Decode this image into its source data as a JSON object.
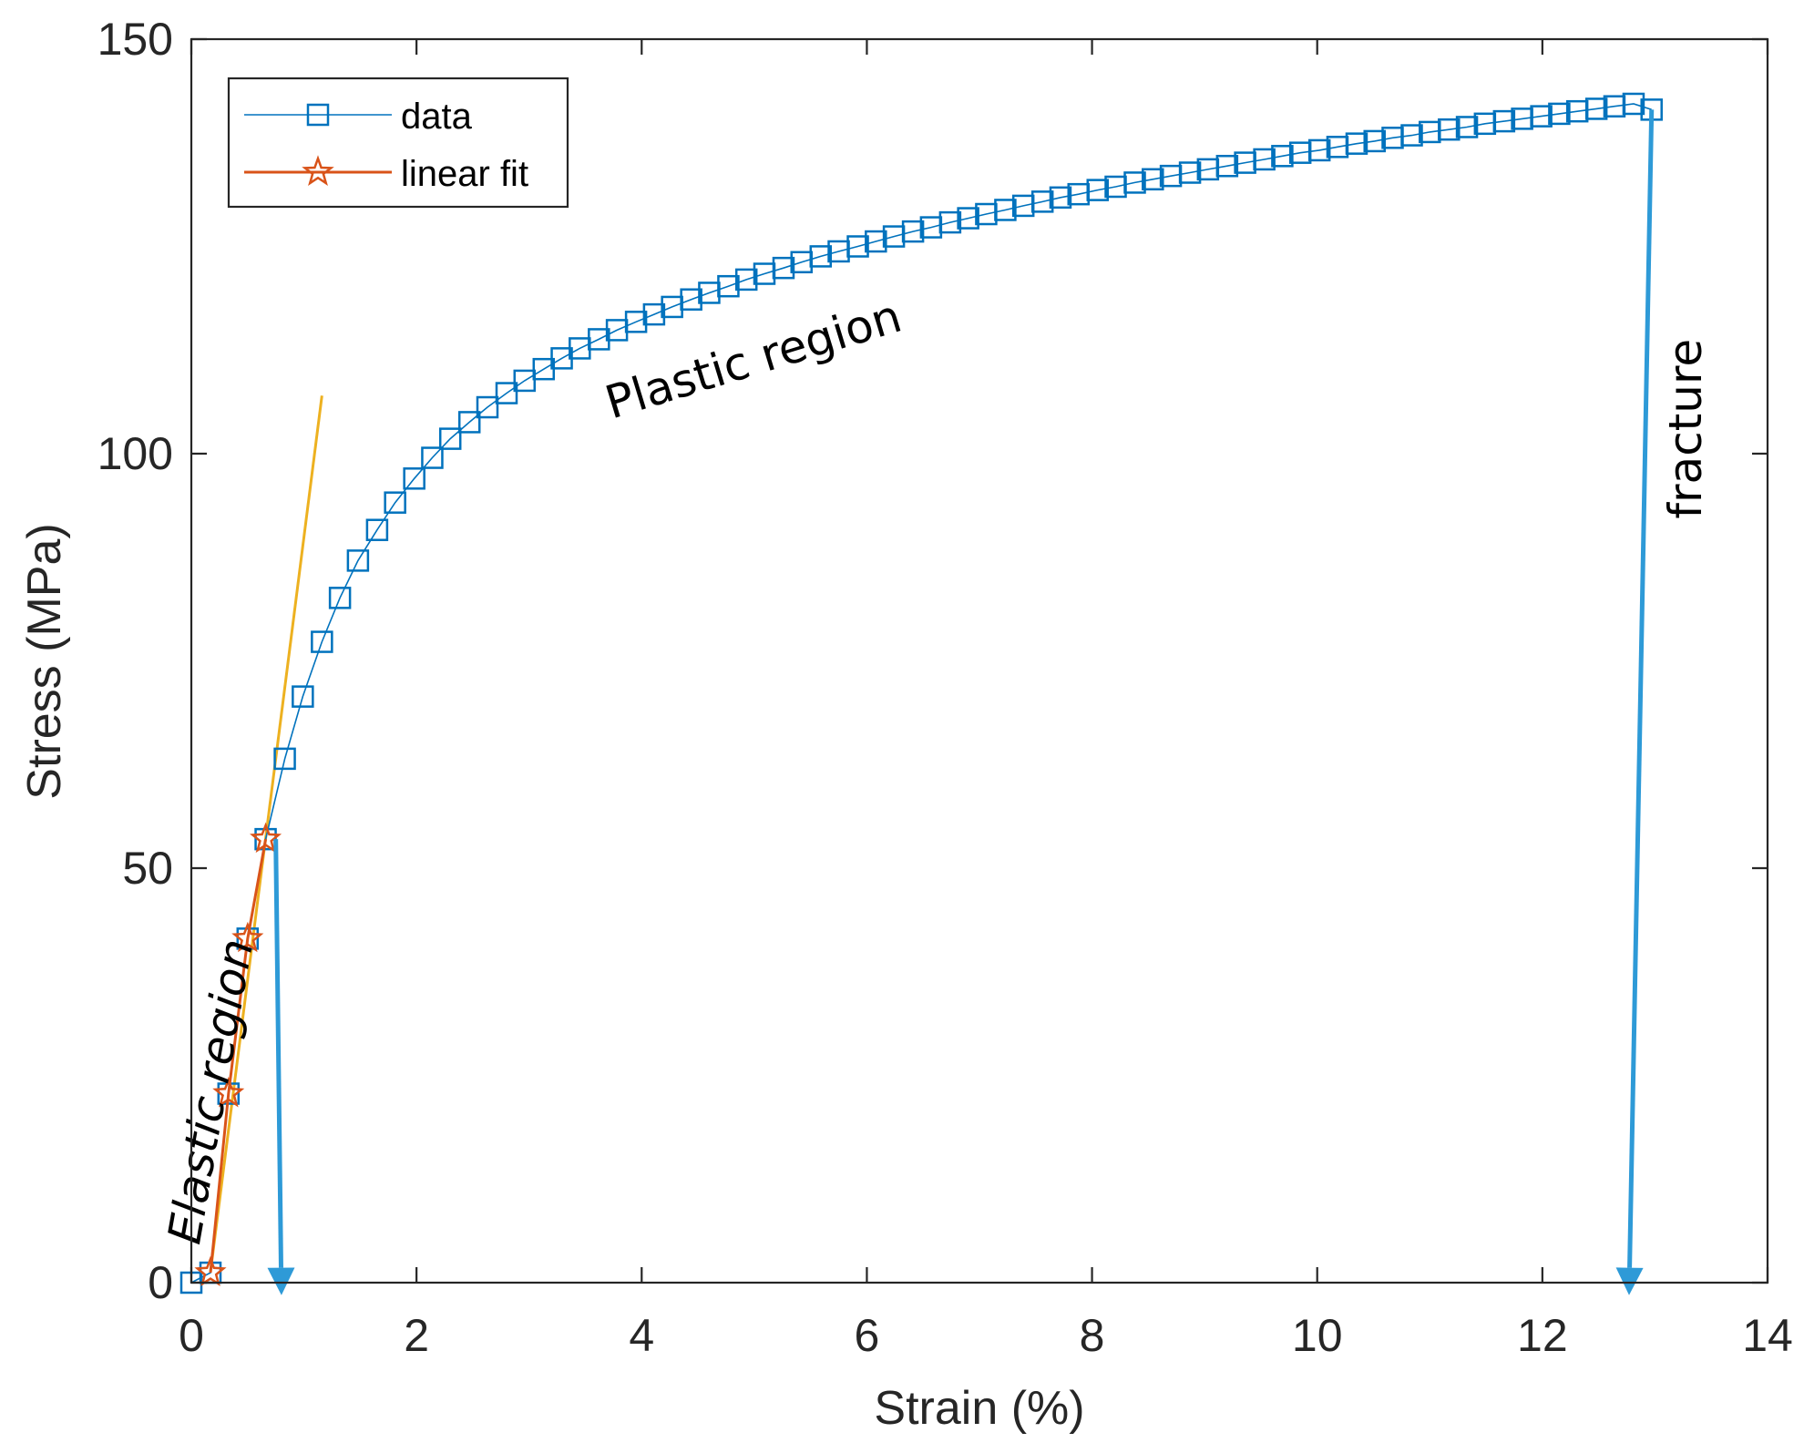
{
  "chart_data": {
    "type": "line",
    "xlabel": "Strain (%)",
    "ylabel": "Stress (MPa)",
    "xlim": [
      0,
      14
    ],
    "ylim": [
      0,
      150
    ],
    "xticks": [
      0,
      2,
      4,
      6,
      8,
      10,
      12,
      14
    ],
    "yticks": [
      0,
      50,
      100,
      150
    ],
    "grid": false,
    "legend_position": "top-left",
    "series": [
      {
        "name": "data",
        "color": "#0072BD",
        "marker": "square",
        "x": [
          0.0,
          0.17,
          0.33,
          0.5,
          0.66,
          0.83,
          0.99,
          1.16,
          1.32,
          1.48,
          1.65,
          1.81,
          1.98,
          2.14,
          2.3,
          2.47,
          2.63,
          2.8,
          2.96,
          3.13,
          3.29,
          3.45,
          3.62,
          3.78,
          3.95,
          4.11,
          4.27,
          4.44,
          4.6,
          4.77,
          4.93,
          5.09,
          5.26,
          5.42,
          5.59,
          5.75,
          5.92,
          6.08,
          6.24,
          6.41,
          6.57,
          6.74,
          6.9,
          7.06,
          7.23,
          7.39,
          7.56,
          7.72,
          7.88,
          8.05,
          8.21,
          8.38,
          8.54,
          8.7,
          8.87,
          9.03,
          9.2,
          9.36,
          9.53,
          9.69,
          9.85,
          10.02,
          10.18,
          10.35,
          10.51,
          10.67,
          10.84,
          11.0,
          11.17,
          11.33,
          11.49,
          11.66,
          11.82,
          11.99,
          12.15,
          12.31,
          12.48,
          12.64,
          12.81,
          12.97
        ],
        "y": [
          0.0,
          1.2,
          22.8,
          41.5,
          53.5,
          63.2,
          70.7,
          77.3,
          82.6,
          87.1,
          90.8,
          94.1,
          97.0,
          99.5,
          101.8,
          103.8,
          105.6,
          107.3,
          108.8,
          110.2,
          111.5,
          112.7,
          113.8,
          114.9,
          115.9,
          116.8,
          117.7,
          118.6,
          119.4,
          120.2,
          121.0,
          121.7,
          122.4,
          123.1,
          123.8,
          124.4,
          125.0,
          125.6,
          126.2,
          126.8,
          127.3,
          127.9,
          128.4,
          128.9,
          129.4,
          129.9,
          130.4,
          130.9,
          131.3,
          131.8,
          132.2,
          132.7,
          133.1,
          133.5,
          133.9,
          134.3,
          134.7,
          135.1,
          135.5,
          135.9,
          136.3,
          136.6,
          137.0,
          137.4,
          137.7,
          138.1,
          138.4,
          138.8,
          139.1,
          139.4,
          139.8,
          140.1,
          140.4,
          140.7,
          141.0,
          141.3,
          141.6,
          141.9,
          142.2,
          141.5
        ]
      },
      {
        "name": "linear fit",
        "color": "#D95319",
        "marker": "star",
        "x": [
          0.17,
          0.33,
          0.5,
          0.66
        ],
        "y": [
          1.2,
          22.8,
          41.5,
          53.5
        ]
      }
    ],
    "fit_line": {
      "color": "#EDB120",
      "x": [
        0.17,
        1.16
      ],
      "y": [
        1.3,
        107.0
      ]
    },
    "annotations": [
      {
        "text": "Plastic region",
        "x": 5.0,
        "y": 111,
        "rotation": -17,
        "italic": false
      },
      {
        "text": "Elastic region",
        "x": 0.2,
        "y": 23,
        "rotation": -80,
        "italic": true
      },
      {
        "text": "fracture",
        "x": 13.3,
        "y": 103,
        "rotation": -90,
        "italic": false
      }
    ],
    "arrows": [
      {
        "color": "#2E9AD7",
        "x_start": 0.75,
        "y_start": 53.5,
        "x_end": 0.8,
        "y_end": -1.5
      },
      {
        "color": "#2E9AD7",
        "x_start": 12.97,
        "y_start": 141.5,
        "x_end": 12.77,
        "y_end": -1.5
      }
    ]
  }
}
